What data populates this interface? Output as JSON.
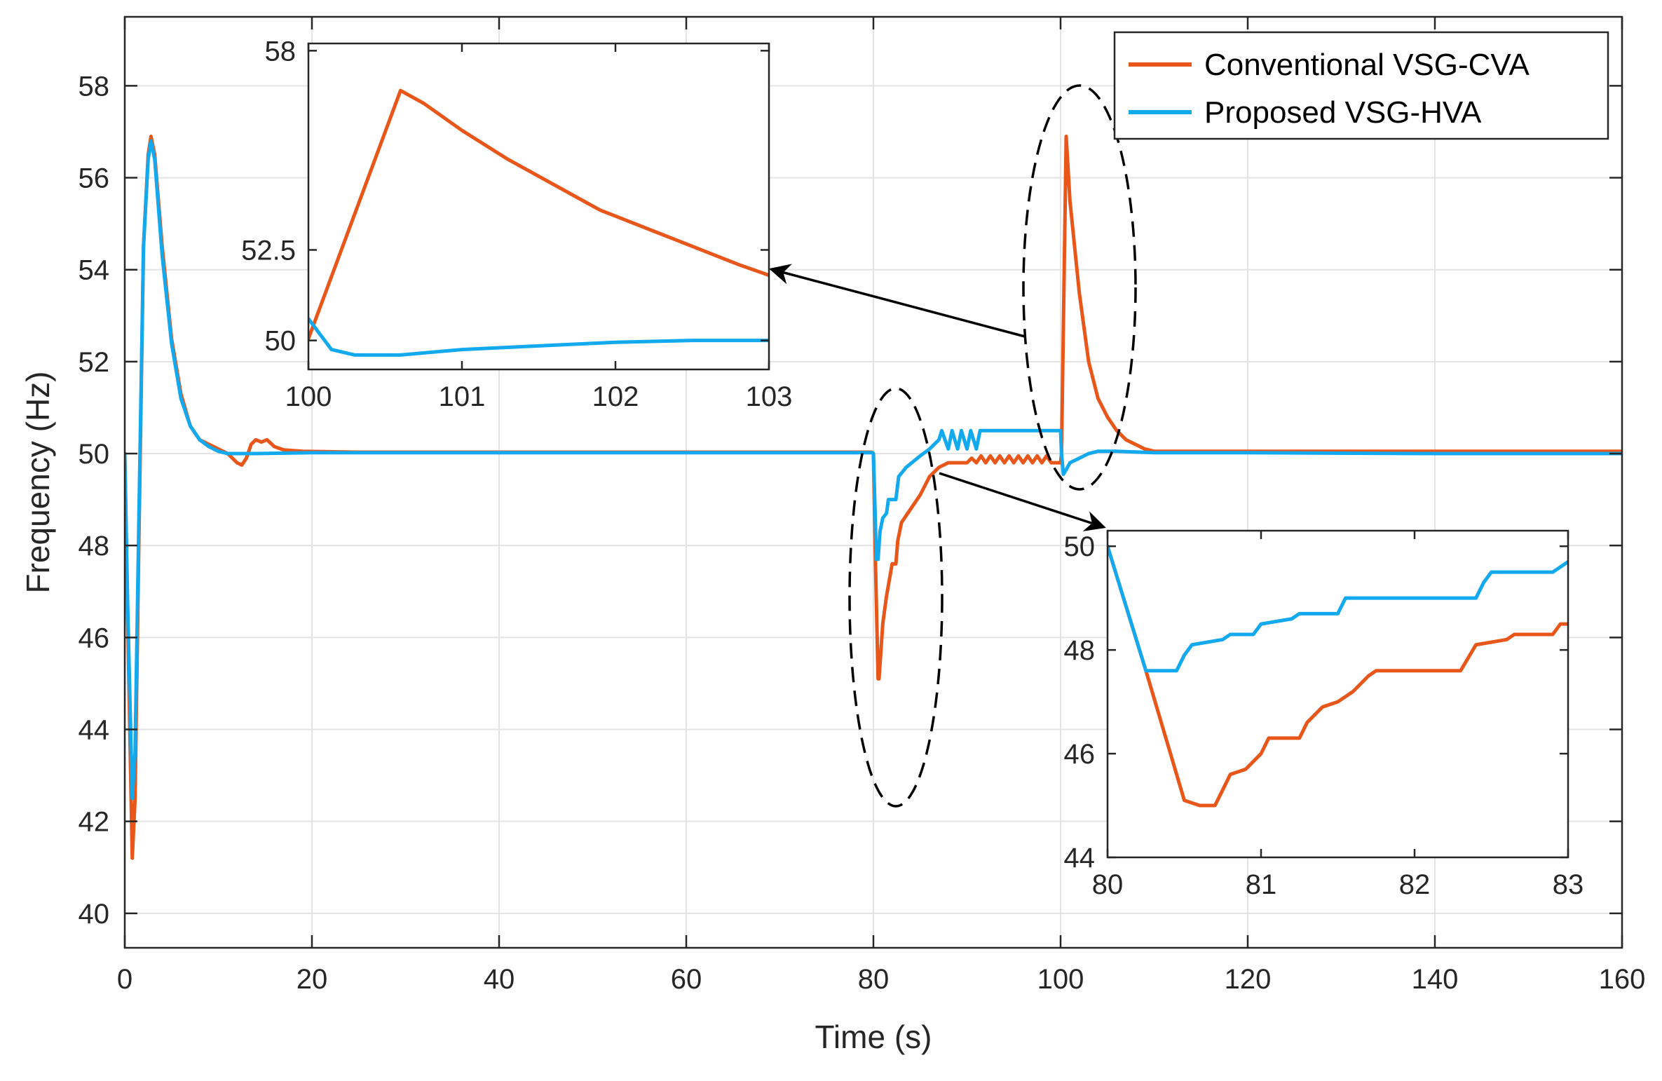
{
  "colors": {
    "conventional": "#E8561A",
    "proposed": "#13A9EE",
    "axis": "#262626",
    "grid": "#E3E3E3",
    "annotation": "#000000"
  },
  "chart_data": [
    {
      "id": "main",
      "type": "line",
      "title": "",
      "xlabel": "Time (s)",
      "ylabel": "Frequency (Hz)",
      "xlim": [
        0,
        160
      ],
      "ylim": [
        39.25,
        59.5
      ],
      "xticks": [
        0,
        20,
        40,
        60,
        80,
        100,
        120,
        140,
        160
      ],
      "xtick_labels": [
        "0",
        "20",
        "40",
        "60",
        "80",
        "100",
        "120",
        "140",
        "160"
      ],
      "yticks": [
        40,
        42,
        44,
        46,
        48,
        50,
        52,
        54,
        56,
        58
      ],
      "ytick_labels": [
        "40",
        "42",
        "44",
        "46",
        "48",
        "50",
        "52",
        "54",
        "56",
        "58"
      ],
      "grid": true,
      "legend_position": "top-right",
      "series": [
        {
          "name": "Conventional VSG-CVA",
          "color_key": "conventional",
          "points": [
            [
              0,
              50.0
            ],
            [
              0.3,
              46.5
            ],
            [
              0.8,
              41.2
            ],
            [
              1.1,
              42.5
            ],
            [
              1.5,
              48.0
            ],
            [
              2.0,
              54.5
            ],
            [
              2.5,
              56.5
            ],
            [
              2.8,
              56.9
            ],
            [
              3.2,
              56.5
            ],
            [
              4.0,
              54.5
            ],
            [
              5.0,
              52.5
            ],
            [
              6.0,
              51.3
            ],
            [
              7.0,
              50.6
            ],
            [
              8.0,
              50.3
            ],
            [
              9.0,
              50.2
            ],
            [
              10.0,
              50.1
            ],
            [
              11.0,
              50.0
            ],
            [
              12.0,
              49.8
            ],
            [
              12.5,
              49.75
            ],
            [
              13.0,
              49.9
            ],
            [
              13.5,
              50.2
            ],
            [
              14.0,
              50.3
            ],
            [
              14.6,
              50.25
            ],
            [
              15.2,
              50.3
            ],
            [
              16.0,
              50.15
            ],
            [
              17.0,
              50.08
            ],
            [
              19.0,
              50.05
            ],
            [
              25.0,
              50.03
            ],
            [
              40.0,
              50.03
            ],
            [
              60.0,
              50.03
            ],
            [
              79.8,
              50.03
            ],
            [
              80.0,
              50.0
            ],
            [
              80.2,
              47.8
            ],
            [
              80.5,
              45.1
            ],
            [
              80.6,
              45.1
            ],
            [
              81.0,
              46.3
            ],
            [
              81.4,
              46.9
            ],
            [
              82.0,
              47.6
            ],
            [
              82.4,
              47.6
            ],
            [
              82.6,
              48.1
            ],
            [
              83.0,
              48.5
            ],
            [
              84.0,
              48.8
            ],
            [
              85.0,
              49.1
            ],
            [
              86.0,
              49.5
            ],
            [
              87.0,
              49.7
            ],
            [
              88.0,
              49.8
            ],
            [
              90.0,
              49.8
            ],
            [
              90.5,
              49.9
            ],
            [
              91.0,
              49.8
            ],
            [
              91.5,
              49.95
            ],
            [
              92.0,
              49.8
            ],
            [
              92.5,
              49.95
            ],
            [
              93.0,
              49.8
            ],
            [
              93.5,
              49.95
            ],
            [
              94.0,
              49.8
            ],
            [
              94.5,
              49.95
            ],
            [
              95.0,
              49.8
            ],
            [
              95.5,
              49.95
            ],
            [
              96.0,
              49.8
            ],
            [
              96.5,
              49.95
            ],
            [
              97.0,
              49.8
            ],
            [
              97.5,
              49.95
            ],
            [
              98.0,
              49.8
            ],
            [
              98.5,
              49.95
            ],
            [
              99.0,
              49.8
            ],
            [
              100.0,
              49.8
            ],
            [
              100.1,
              50.0
            ],
            [
              100.6,
              56.9
            ],
            [
              101.0,
              55.5
            ],
            [
              102.0,
              53.5
            ],
            [
              103.0,
              52.0
            ],
            [
              104.0,
              51.2
            ],
            [
              105.0,
              50.8
            ],
            [
              106.0,
              50.5
            ],
            [
              107.0,
              50.3
            ],
            [
              108.0,
              50.2
            ],
            [
              109.0,
              50.1
            ],
            [
              110.0,
              50.05
            ],
            [
              120.0,
              50.05
            ],
            [
              140.0,
              50.05
            ],
            [
              160.0,
              50.05
            ]
          ]
        },
        {
          "name": "Proposed VSG-HVA",
          "color_key": "proposed",
          "points": [
            [
              0,
              50.0
            ],
            [
              0.3,
              46.8
            ],
            [
              0.8,
              42.5
            ],
            [
              1.1,
              43.5
            ],
            [
              1.5,
              48.5
            ],
            [
              2.0,
              54.5
            ],
            [
              2.5,
              56.4
            ],
            [
              2.8,
              56.8
            ],
            [
              3.2,
              56.4
            ],
            [
              4.0,
              54.3
            ],
            [
              5.0,
              52.4
            ],
            [
              6.0,
              51.2
            ],
            [
              7.0,
              50.6
            ],
            [
              8.0,
              50.3
            ],
            [
              9.0,
              50.15
            ],
            [
              10.0,
              50.05
            ],
            [
              11.0,
              50.0
            ],
            [
              12.0,
              50.0
            ],
            [
              14.0,
              50.0
            ],
            [
              20.0,
              50.02
            ],
            [
              40.0,
              50.02
            ],
            [
              60.0,
              50.02
            ],
            [
              79.9,
              50.02
            ],
            [
              80.0,
              50.0
            ],
            [
              80.2,
              48.6
            ],
            [
              80.3,
              47.7
            ],
            [
              80.5,
              47.7
            ],
            [
              80.7,
              48.3
            ],
            [
              81.0,
              48.6
            ],
            [
              81.4,
              48.7
            ],
            [
              81.6,
              49.0
            ],
            [
              82.0,
              49.0
            ],
            [
              82.4,
              49.0
            ],
            [
              82.7,
              49.5
            ],
            [
              83.5,
              49.7
            ],
            [
              85.0,
              49.95
            ],
            [
              86.0,
              50.1
            ],
            [
              87.0,
              50.3
            ],
            [
              87.3,
              50.5
            ],
            [
              88.0,
              50.1
            ],
            [
              88.4,
              50.5
            ],
            [
              89.0,
              50.1
            ],
            [
              89.4,
              50.5
            ],
            [
              90.0,
              50.1
            ],
            [
              90.4,
              50.5
            ],
            [
              91.0,
              50.1
            ],
            [
              91.4,
              50.5
            ],
            [
              92.0,
              50.5
            ],
            [
              96.0,
              50.5
            ],
            [
              100.0,
              50.5
            ],
            [
              100.1,
              50.0
            ],
            [
              100.3,
              49.55
            ],
            [
              100.6,
              49.65
            ],
            [
              101.0,
              49.8
            ],
            [
              102.0,
              49.9
            ],
            [
              103.0,
              50.0
            ],
            [
              104.0,
              50.05
            ],
            [
              106.0,
              50.05
            ],
            [
              110.0,
              50.02
            ],
            [
              120.0,
              50.02
            ],
            [
              140.0,
              50.0
            ],
            [
              160.0,
              50.0
            ]
          ]
        }
      ]
    },
    {
      "id": "inset-100",
      "type": "line",
      "title": "",
      "xlim": [
        100,
        103
      ],
      "ylim": [
        49.2,
        58.2
      ],
      "xticks": [
        100,
        101,
        102,
        103
      ],
      "xtick_labels": [
        "100",
        "101",
        "102",
        "103"
      ],
      "yticks": [
        50,
        52.5,
        58
      ],
      "ytick_labels": [
        "50",
        "52.5",
        "58"
      ],
      "grid": false,
      "series": [
        {
          "name": "Conventional VSG-CVA",
          "color_key": "conventional",
          "points": [
            [
              100.0,
              50.05
            ],
            [
              100.6,
              56.9
            ],
            [
              100.75,
              56.55
            ],
            [
              101.0,
              55.8
            ],
            [
              101.3,
              55.0
            ],
            [
              101.6,
              54.3
            ],
            [
              101.9,
              53.6
            ],
            [
              102.2,
              53.1
            ],
            [
              102.5,
              52.6
            ],
            [
              102.8,
              52.1
            ],
            [
              103.0,
              51.8
            ]
          ]
        },
        {
          "name": "Proposed VSG-HVA",
          "color_key": "proposed",
          "points": [
            [
              100.0,
              50.6
            ],
            [
              100.15,
              49.75
            ],
            [
              100.3,
              49.6
            ],
            [
              100.6,
              49.6
            ],
            [
              101.0,
              49.75
            ],
            [
              101.5,
              49.85
            ],
            [
              102.0,
              49.95
            ],
            [
              102.5,
              50.0
            ],
            [
              103.0,
              50.0
            ]
          ]
        }
      ]
    },
    {
      "id": "inset-80",
      "type": "line",
      "title": "",
      "xlim": [
        80,
        83
      ],
      "ylim": [
        44,
        50.3
      ],
      "xticks": [
        80,
        81,
        82,
        83
      ],
      "xtick_labels": [
        "80",
        "81",
        "82",
        "83"
      ],
      "yticks": [
        44,
        46,
        48,
        50
      ],
      "ytick_labels": [
        "44",
        "46",
        "48",
        "50"
      ],
      "grid": false,
      "series": [
        {
          "name": "Conventional VSG-CVA",
          "color_key": "conventional",
          "points": [
            [
              80.0,
              50.0
            ],
            [
              80.25,
              47.6
            ],
            [
              80.5,
              45.1
            ],
            [
              80.6,
              45.0
            ],
            [
              80.7,
              45.0
            ],
            [
              80.75,
              45.3
            ],
            [
              80.8,
              45.6
            ],
            [
              80.9,
              45.7
            ],
            [
              81.0,
              46.0
            ],
            [
              81.05,
              46.3
            ],
            [
              81.25,
              46.3
            ],
            [
              81.3,
              46.6
            ],
            [
              81.4,
              46.9
            ],
            [
              81.5,
              47.0
            ],
            [
              81.6,
              47.2
            ],
            [
              81.7,
              47.5
            ],
            [
              81.75,
              47.6
            ],
            [
              82.0,
              47.6
            ],
            [
              82.3,
              47.6
            ],
            [
              82.4,
              48.1
            ],
            [
              82.6,
              48.2
            ],
            [
              82.65,
              48.3
            ],
            [
              82.9,
              48.3
            ],
            [
              82.95,
              48.5
            ],
            [
              83.0,
              48.5
            ]
          ]
        },
        {
          "name": "Proposed VSG-HVA",
          "color_key": "proposed",
          "points": [
            [
              80.0,
              50.0
            ],
            [
              80.25,
              47.6
            ],
            [
              80.45,
              47.6
            ],
            [
              80.5,
              47.9
            ],
            [
              80.55,
              48.1
            ],
            [
              80.75,
              48.2
            ],
            [
              80.8,
              48.3
            ],
            [
              80.95,
              48.3
            ],
            [
              81.0,
              48.5
            ],
            [
              81.2,
              48.6
            ],
            [
              81.25,
              48.7
            ],
            [
              81.5,
              48.7
            ],
            [
              81.55,
              49.0
            ],
            [
              82.0,
              49.0
            ],
            [
              82.4,
              49.0
            ],
            [
              82.45,
              49.3
            ],
            [
              82.5,
              49.5
            ],
            [
              82.9,
              49.5
            ],
            [
              83.0,
              49.7
            ]
          ]
        }
      ]
    }
  ]
}
